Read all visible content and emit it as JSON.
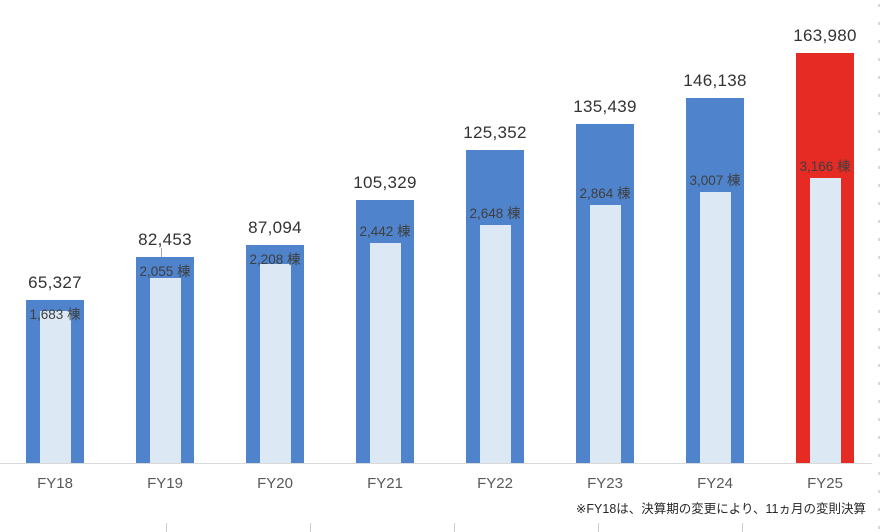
{
  "chart_data": {
    "type": "bar",
    "title": "",
    "categories": [
      "FY18",
      "FY19",
      "FY20",
      "FY21",
      "FY22",
      "FY23",
      "FY24",
      "FY25"
    ],
    "series": [
      {
        "name": "total-value",
        "values": [
          65327,
          82453,
          87094,
          105329,
          125352,
          135439,
          146138,
          163980
        ],
        "labels": [
          "65,327",
          "82,453",
          "87,094",
          "105,329",
          "125,352",
          "135,439",
          "146,138",
          "163,980"
        ],
        "color_default": "#4F83CB",
        "color_highlight": "#E52B24",
        "highlight_index": 7
      },
      {
        "name": "building-count",
        "values": [
          1683,
          2055,
          2208,
          2442,
          2648,
          2864,
          3007,
          3166
        ],
        "labels": [
          "1,683 棟",
          "2,055 棟",
          "2,208 棟",
          "2,442 棟",
          "2,648 棟",
          "2,864 棟",
          "3,007 棟",
          "3,166 棟"
        ],
        "color": "#DCE9F4"
      }
    ],
    "ylim": [
      0,
      164000
    ],
    "grid": false,
    "legend": false,
    "leader_line_index": 1,
    "footnote": "※FY18は、決算期の変更により、11ヵ月の変則決算",
    "colors": {
      "axis_line": "#D9D9D9",
      "category_label": "#595959",
      "value_label": "#333333",
      "unit_label": "#3F3F3F",
      "footnote": "#262626",
      "clipped_tick": "#C9CCD1"
    }
  }
}
